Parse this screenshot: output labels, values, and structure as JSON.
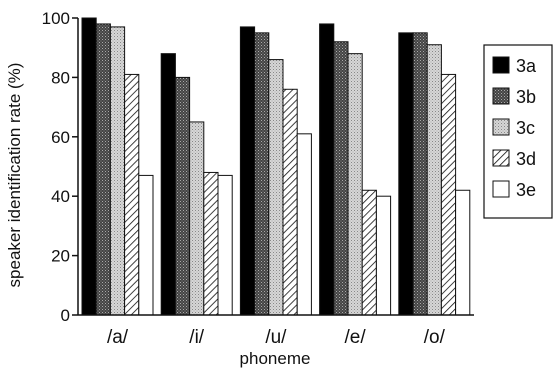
{
  "chart_data": {
    "type": "bar",
    "title": "",
    "xlabel": "phoneme",
    "ylabel": "speaker identification rate (%)",
    "ylim": [
      0,
      100
    ],
    "yticks": [
      0,
      20,
      40,
      60,
      80,
      100
    ],
    "grid": false,
    "legend_position": "right",
    "categories": [
      "/a/",
      "/i/",
      "/u/",
      "/e/",
      "/o/"
    ],
    "series": [
      {
        "name": "3a",
        "pattern": "black",
        "values": [
          100,
          88,
          97,
          98,
          95
        ]
      },
      {
        "name": "3b",
        "pattern": "dark-stipple",
        "values": [
          98,
          80,
          95,
          92,
          95
        ]
      },
      {
        "name": "3c",
        "pattern": "light-stipple",
        "values": [
          97,
          65,
          86,
          88,
          91
        ]
      },
      {
        "name": "3d",
        "pattern": "hatched",
        "values": [
          81,
          48,
          76,
          42,
          81
        ]
      },
      {
        "name": "3e",
        "pattern": "white",
        "values": [
          47,
          47,
          61,
          40,
          42
        ]
      }
    ]
  }
}
